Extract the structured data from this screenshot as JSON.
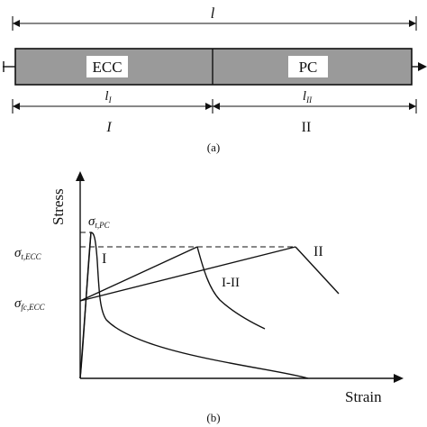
{
  "panel_a": {
    "total_length_label": "l",
    "segment_left_label": "ECC",
    "segment_right_label": "PC",
    "length_left_label": "l",
    "length_left_sub": "I",
    "length_right_label": "l",
    "length_right_sub": "II",
    "zone_left_label": "I",
    "zone_right_label": "II",
    "caption": "(a)"
  },
  "panel_b": {
    "y_axis_label": "Stress",
    "x_axis_label": "Strain",
    "sigma_t_pc": {
      "symbol": "σ",
      "sub": "t,PC"
    },
    "sigma_t_ecc": {
      "symbol": "σ",
      "sub": "t,ECC"
    },
    "sigma_fc_ecc": {
      "symbol": "σ",
      "sub": "fc,ECC"
    },
    "curve_label_I": "I",
    "curve_label_I_II": "I-II",
    "curve_label_II": "II",
    "caption": "(b)"
  }
}
